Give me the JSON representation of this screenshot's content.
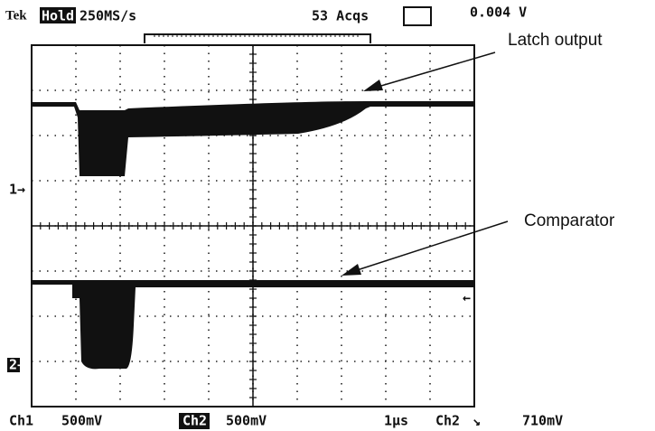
{
  "header": {
    "brand": "Tek",
    "mode": "Hold",
    "sample_rate": "250MS/s",
    "acquisitions": "53 Acqs",
    "readout": "0.004 V"
  },
  "annotations": {
    "latch": "Latch output",
    "comparator": "Comparator"
  },
  "markers": {
    "ch1": "1→",
    "ch2": "2→"
  },
  "footer": {
    "ch1_label": "Ch1",
    "ch1_scale": "500mV",
    "ch2_label": "Ch2",
    "ch2_scale": "500mV",
    "timebase": "1µs",
    "trigger_source": "Ch2",
    "trigger_slope": "↘",
    "trigger_level": "710mV"
  }
}
